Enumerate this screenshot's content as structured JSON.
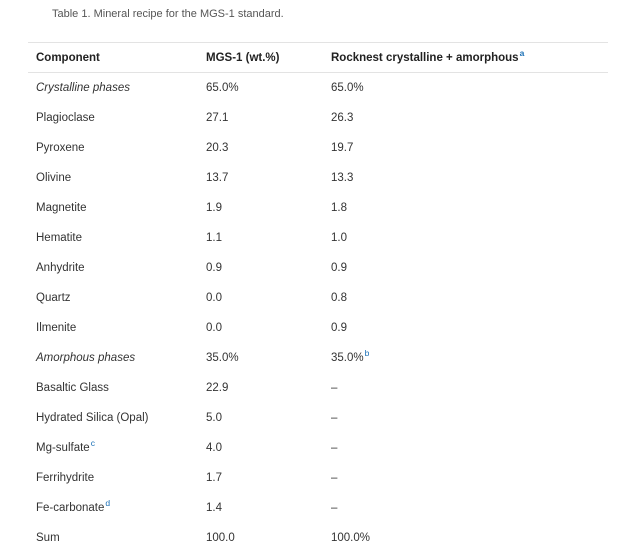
{
  "caption": "Table 1. Mineral recipe for the MGS-1 standard.",
  "columns": [
    {
      "label": "Component",
      "note": ""
    },
    {
      "label": "MGS-1 (wt.%)",
      "note": ""
    },
    {
      "label": "Rocknest crystalline + amorphous",
      "note": "a"
    }
  ],
  "rows": [
    {
      "component": "Crystalline phases",
      "component_note": "",
      "mgs1": "65.0%",
      "mgs1_note": "",
      "rocknest": "65.0%",
      "rocknest_note": "",
      "section": true
    },
    {
      "component": "Plagioclase",
      "component_note": "",
      "mgs1": "27.1",
      "mgs1_note": "",
      "rocknest": "26.3",
      "rocknest_note": "",
      "section": false
    },
    {
      "component": "Pyroxene",
      "component_note": "",
      "mgs1": "20.3",
      "mgs1_note": "",
      "rocknest": "19.7",
      "rocknest_note": "",
      "section": false
    },
    {
      "component": "Olivine",
      "component_note": "",
      "mgs1": "13.7",
      "mgs1_note": "",
      "rocknest": "13.3",
      "rocknest_note": "",
      "section": false
    },
    {
      "component": "Magnetite",
      "component_note": "",
      "mgs1": "1.9",
      "mgs1_note": "",
      "rocknest": "1.8",
      "rocknest_note": "",
      "section": false
    },
    {
      "component": "Hematite",
      "component_note": "",
      "mgs1": "1.1",
      "mgs1_note": "",
      "rocknest": "1.0",
      "rocknest_note": "",
      "section": false
    },
    {
      "component": "Anhydrite",
      "component_note": "",
      "mgs1": "0.9",
      "mgs1_note": "",
      "rocknest": "0.9",
      "rocknest_note": "",
      "section": false
    },
    {
      "component": "Quartz",
      "component_note": "",
      "mgs1": "0.0",
      "mgs1_note": "",
      "rocknest": "0.8",
      "rocknest_note": "",
      "section": false
    },
    {
      "component": "Ilmenite",
      "component_note": "",
      "mgs1": "0.0",
      "mgs1_note": "",
      "rocknest": "0.9",
      "rocknest_note": "",
      "section": false
    },
    {
      "component": "Amorphous phases",
      "component_note": "",
      "mgs1": "35.0%",
      "mgs1_note": "",
      "rocknest": "35.0%",
      "rocknest_note": "b",
      "section": true
    },
    {
      "component": "Basaltic Glass",
      "component_note": "",
      "mgs1": "22.9",
      "mgs1_note": "",
      "rocknest": "–",
      "rocknest_note": "",
      "section": false
    },
    {
      "component": "Hydrated Silica (Opal)",
      "component_note": "",
      "mgs1": "5.0",
      "mgs1_note": "",
      "rocknest": "–",
      "rocknest_note": "",
      "section": false
    },
    {
      "component": "Mg-sulfate",
      "component_note": "c",
      "mgs1": "4.0",
      "mgs1_note": "",
      "rocknest": "–",
      "rocknest_note": "",
      "section": false
    },
    {
      "component": "Ferrihydrite",
      "component_note": "",
      "mgs1": "1.7",
      "mgs1_note": "",
      "rocknest": "–",
      "rocknest_note": "",
      "section": false
    },
    {
      "component": "Fe-carbonate",
      "component_note": "d",
      "mgs1": "1.4",
      "mgs1_note": "",
      "rocknest": "–",
      "rocknest_note": "",
      "section": false
    },
    {
      "component": "Sum",
      "component_note": "",
      "mgs1": "100.0",
      "mgs1_note": "",
      "rocknest": "100.0%",
      "rocknest_note": "",
      "section": false
    }
  ],
  "colors": {
    "text": "#333333",
    "caption": "#555555",
    "footnote_link": "#1a6fb5",
    "rule": "#e3e3e3"
  }
}
